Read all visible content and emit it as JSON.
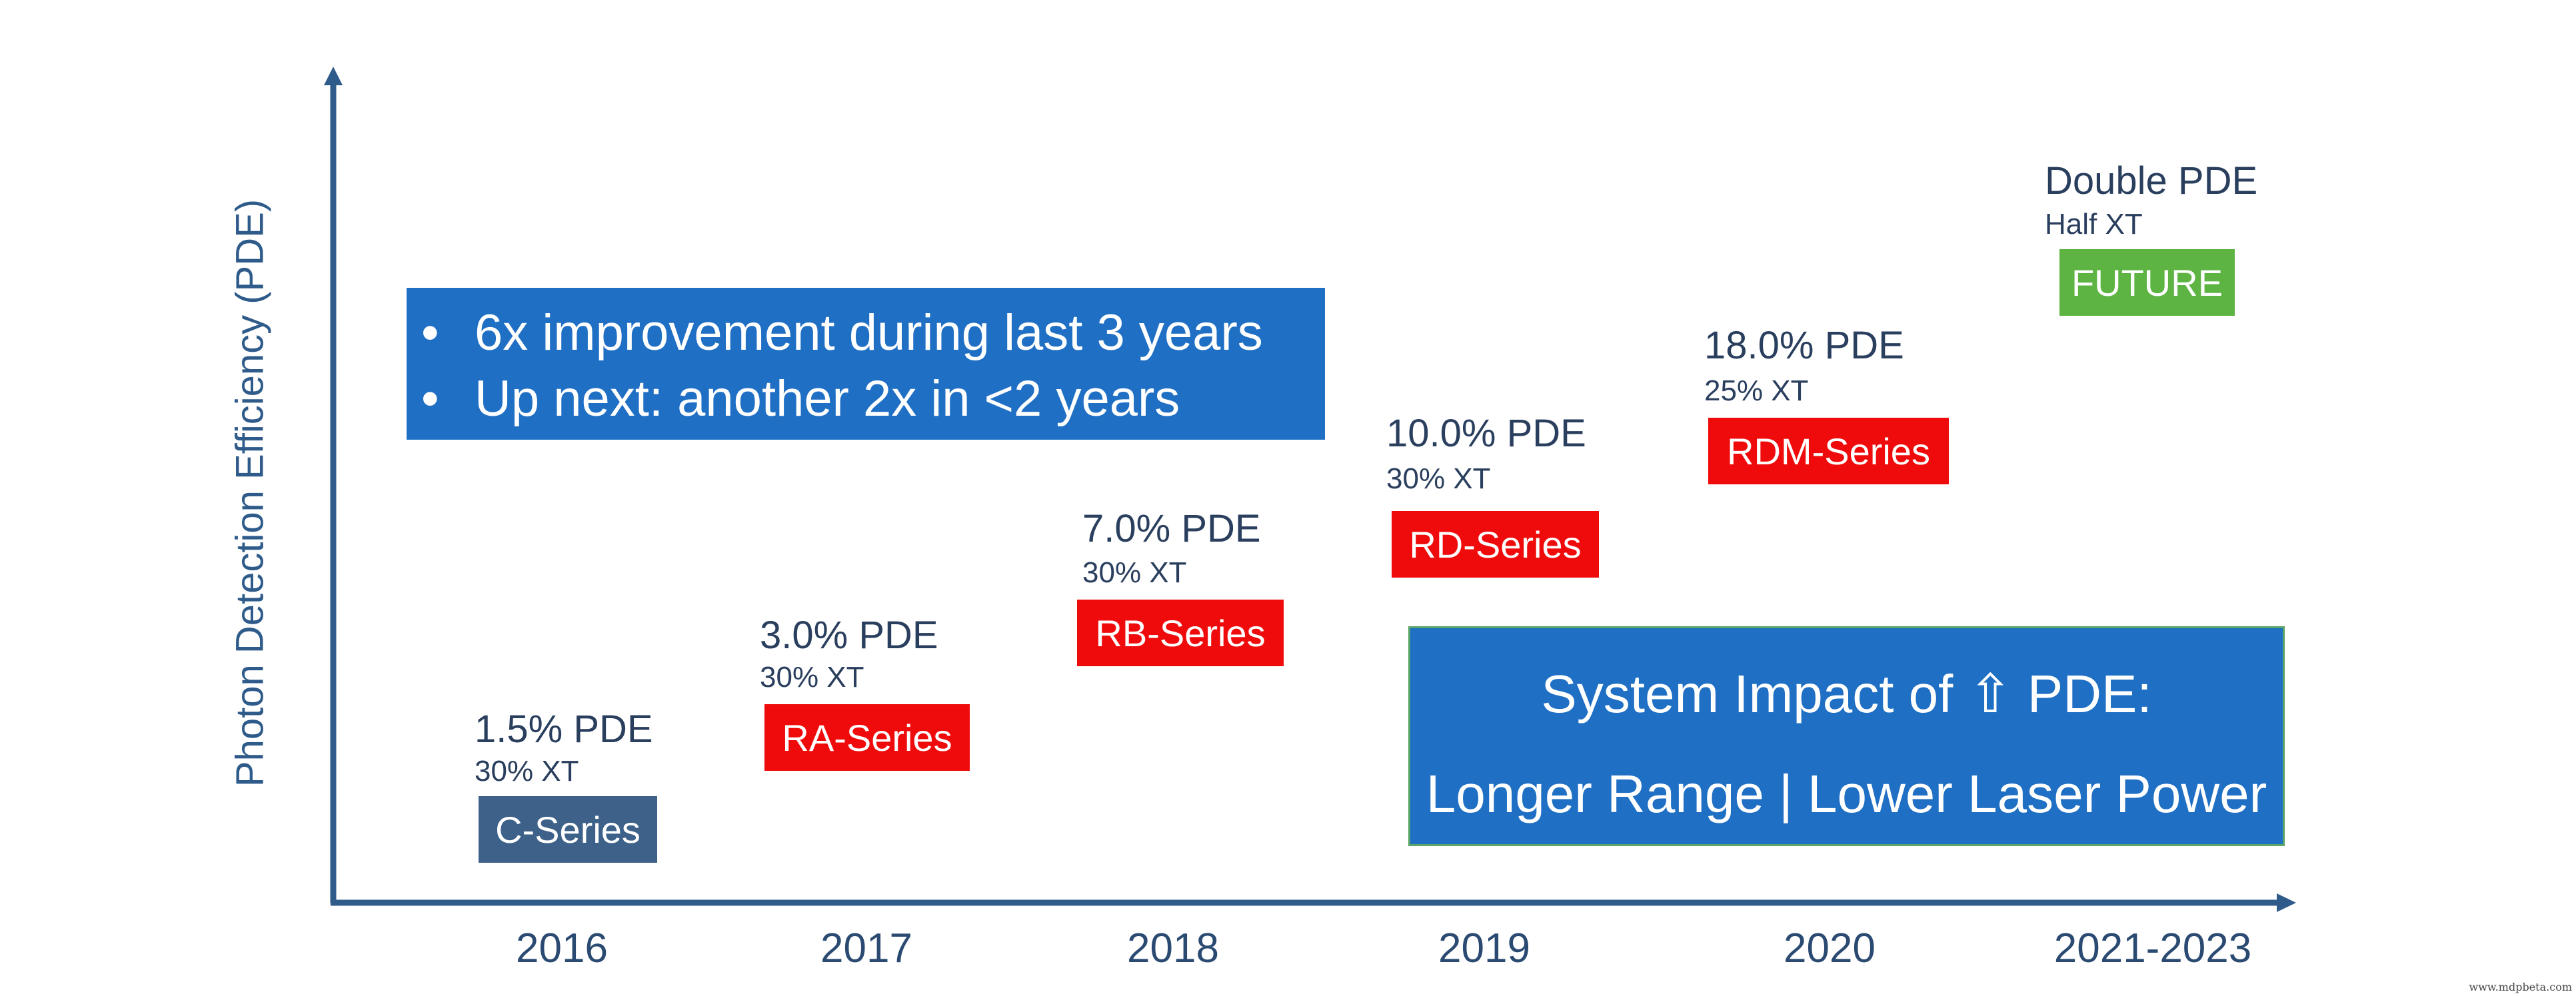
{
  "y_axis_label": "Photon Detection Efficiency (PDE)",
  "x_ticks": [
    "2016",
    "2017",
    "2018",
    "2019",
    "2020",
    "2021-2023"
  ],
  "milestones": [
    {
      "year": "2016",
      "pde": "1.5% PDE",
      "xt": "30% XT",
      "series": "C-Series"
    },
    {
      "year": "2017",
      "pde": "3.0% PDE",
      "xt": "30% XT",
      "series": "RA-Series"
    },
    {
      "year": "2018",
      "pde": "7.0% PDE",
      "xt": "30% XT",
      "series": "RB-Series"
    },
    {
      "year": "2019",
      "pde": "10.0% PDE",
      "xt": "30% XT",
      "series": "RD-Series"
    },
    {
      "year": "2020",
      "pde": "18.0% PDE",
      "xt": "25% XT",
      "series": "RDM-Series"
    },
    {
      "year": "2021-2023",
      "pde": "Double PDE",
      "xt": "Half XT",
      "series": "FUTURE"
    }
  ],
  "callout_improvement": {
    "bullets": [
      "6x improvement during last 3 years",
      "Up next: another 2x in <2 years"
    ]
  },
  "callout_impact": {
    "title": "System Impact of ⇧ PDE:",
    "subtitle": "Longer Range | Lower Laser Power"
  },
  "watermark": "www.mdpbeta.com",
  "colors": {
    "axis": "#2e5b8a",
    "callout_blue": "#1f6fc4",
    "series_red": "#ef0b0b",
    "series_navy": "#3d6189",
    "series_green": "#5db443"
  }
}
